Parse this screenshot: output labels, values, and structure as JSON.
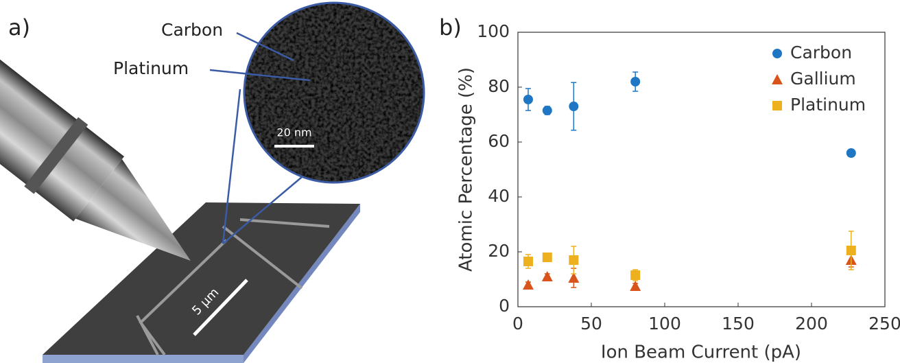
{
  "panel_labels": [
    "a)",
    "b)"
  ],
  "illustration": {
    "labels": [
      "Carbon",
      "Platinum"
    ],
    "scale_bars": [
      "20 nm",
      "5 µm"
    ]
  },
  "chart_data": {
    "type": "scatter",
    "x_label": "Ion Beam Current (pA)",
    "y_label": "Atomic Percentage (%)",
    "x": [
      7,
      20,
      38,
      80,
      227
    ],
    "series": [
      {
        "name": "Carbon",
        "color": "#1f77c4",
        "marker": "circle",
        "values": [
          75.5,
          71.5,
          73,
          82,
          56
        ],
        "errors": [
          4,
          1.5,
          8.7,
          3.5,
          1
        ]
      },
      {
        "name": "Gallium",
        "color": "#d9541a",
        "marker": "triangle",
        "values": [
          8,
          11,
          10.5,
          7.5,
          17
        ],
        "errors": [
          1,
          1,
          3.5,
          1,
          2.5
        ]
      },
      {
        "name": "Platinum",
        "color": "#edb120",
        "marker": "square",
        "values": [
          16.5,
          18,
          17,
          11.5,
          20.5
        ],
        "errors": [
          2.5,
          1.5,
          5,
          2,
          7
        ]
      }
    ],
    "xlim": [
      0,
      250
    ],
    "xticks": [
      0,
      50,
      100,
      150,
      200,
      250
    ],
    "ylim": [
      0,
      100
    ],
    "yticks": [
      0,
      20,
      40,
      60,
      80,
      100
    ],
    "legend": "top-right",
    "grid": false
  }
}
